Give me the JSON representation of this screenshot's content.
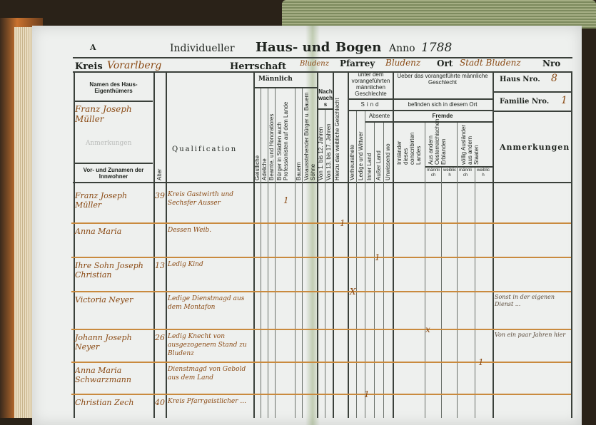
{
  "form": {
    "letter": "A",
    "title_prefix": "Individueller",
    "title_main": "Haus- und",
    "title_bogen": "Bogen",
    "anno_label": "Anno",
    "anno_value": "1788",
    "kreis_label": "Kreis",
    "kreis_value": "Vorarlberg",
    "herrschaft_label": "Herrschaft",
    "herrschaft_value": "Bludenz",
    "pfarrey_label": "Pfarrey",
    "pfarrey_value": "Bludenz",
    "ort_label": "Ort",
    "ort_value": "Stadt Bludenz",
    "nro_label": "Nro",
    "haus_label": "Haus Nro.",
    "haus_value": "8",
    "familie_label": "Familie Nro.",
    "familie_value": "1"
  },
  "headers": {
    "owner": "Namen des Haus-Eigenthümers",
    "owner_value": "Franz Joseph Müller",
    "owner_faint": "Anmerkungen",
    "inhabitants": "Vor- und Zunamen der Innwohner",
    "alter": "Alter",
    "qualification": "Qualification",
    "maennlich": "Männlich",
    "cols_male": [
      "Geistliche",
      "Adeliche",
      "Beamte, und Honoratiores",
      "Bürger in Städten auch Professionisten auf dem Lande",
      "Bauern",
      "Vorausstehender Bürger u. Bauern Söhne"
    ],
    "nachwachs": "Nachwachs",
    "cols_nachwachs": [
      "Von 1. bis 12. Jahren",
      "Von 13. bis 17. Jahren"
    ],
    "weiblich": "Hierzu das weibliche Geschlecht",
    "unter_dem": "unter dem vorangeführten männlichen Geschlechte",
    "sind": "Sind",
    "ueber_das": "Ueber das vorangeführte männliche Geschlecht",
    "befinden": "befinden sich in diesem Ort",
    "absente": "Absente",
    "fremde": "Fremde",
    "cols_sind": [
      "Verheurathete",
      "Ledige und Wittwer"
    ],
    "cols_absente": [
      "Inner Land",
      "Außer Land",
      "Unwissend wo"
    ],
    "cols_fremde": [
      "Innländer dieses conscribirten Landes",
      "Aus andern Oesterreichischen Erblanden",
      "völlig Ausländer aus andern Staaten"
    ],
    "sex_labels": [
      "männlich",
      "weiblich",
      "männlich",
      "weiblich"
    ],
    "anmerkungen": "Anmerkungen"
  },
  "rows": [
    {
      "name": "Franz Joseph Müller",
      "age": "39",
      "qual": "Kreis Gastwirth und Sechsfer Ausser",
      "mark": "1",
      "remark": ""
    },
    {
      "name": "Anna Maria",
      "age": "",
      "qual": "Dessen Weib.",
      "mark": "1",
      "remark": ""
    },
    {
      "name": "Ihre Sohn Joseph Christian",
      "age": "13",
      "qual": "Ledig Kind",
      "mark": "1",
      "remark": ""
    },
    {
      "name": "Victoria Neyer",
      "age": "",
      "qual": "Ledige Dienstmagd aus dem Montafon",
      "mark": "X",
      "remark": "Sonst in der eigenen Dienst ..."
    },
    {
      "name": "Johann Joseph Neyer",
      "age": "26",
      "qual": "Ledig Knecht von ausgezogenem Stand zu Bludenz",
      "mark": "x",
      "remark": "Von ein paar Jahren hier"
    },
    {
      "name": "Anna Maria Schwarzmann",
      "age": "",
      "qual": "Dienstmagd von Gebold aus dem Land",
      "mark": "1",
      "remark": ""
    },
    {
      "name": "Christian Zech",
      "age": "40",
      "qual": "Kreis Pfarrgeistlicher ...",
      "mark": "1",
      "remark": ""
    }
  ]
}
